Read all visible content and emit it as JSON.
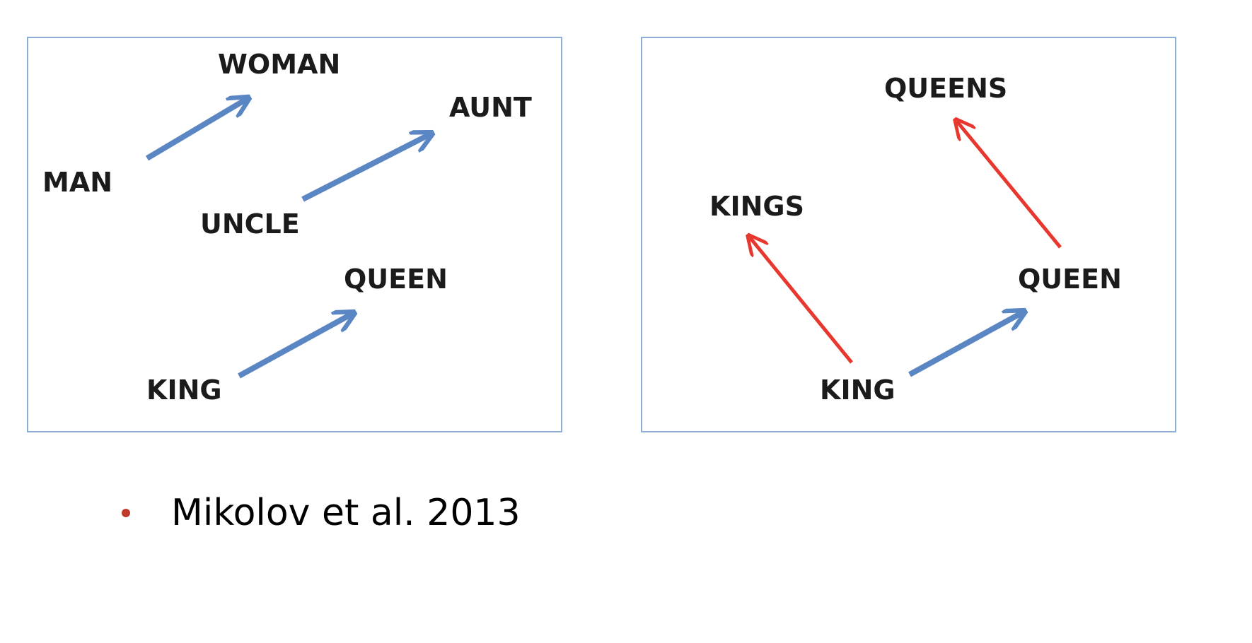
{
  "colors": {
    "analogy_arrow": "#5b86c4",
    "plural_arrow": "#e8372e",
    "panel_border": "#8eaed8",
    "bullet": "#c0392b"
  },
  "panels": [
    {
      "words": {
        "woman": "WOMAN",
        "man": "MAN",
        "aunt": "AUNT",
        "uncle": "UNCLE",
        "queen": "QUEEN",
        "king": "KING"
      },
      "relations": [
        {
          "from": "MAN",
          "to": "WOMAN",
          "color": "analogy_arrow"
        },
        {
          "from": "UNCLE",
          "to": "AUNT",
          "color": "analogy_arrow"
        },
        {
          "from": "KING",
          "to": "QUEEN",
          "color": "analogy_arrow"
        }
      ]
    },
    {
      "words": {
        "queens": "QUEENS",
        "kings": "KINGS",
        "queen": "QUEEN",
        "king": "KING"
      },
      "relations": [
        {
          "from": "KING",
          "to": "KINGS",
          "color": "plural_arrow"
        },
        {
          "from": "QUEEN",
          "to": "QUEENS",
          "color": "plural_arrow"
        },
        {
          "from": "KING",
          "to": "QUEEN",
          "color": "analogy_arrow"
        }
      ]
    }
  ],
  "citation": {
    "text": "Mikolov et al. 2013"
  }
}
